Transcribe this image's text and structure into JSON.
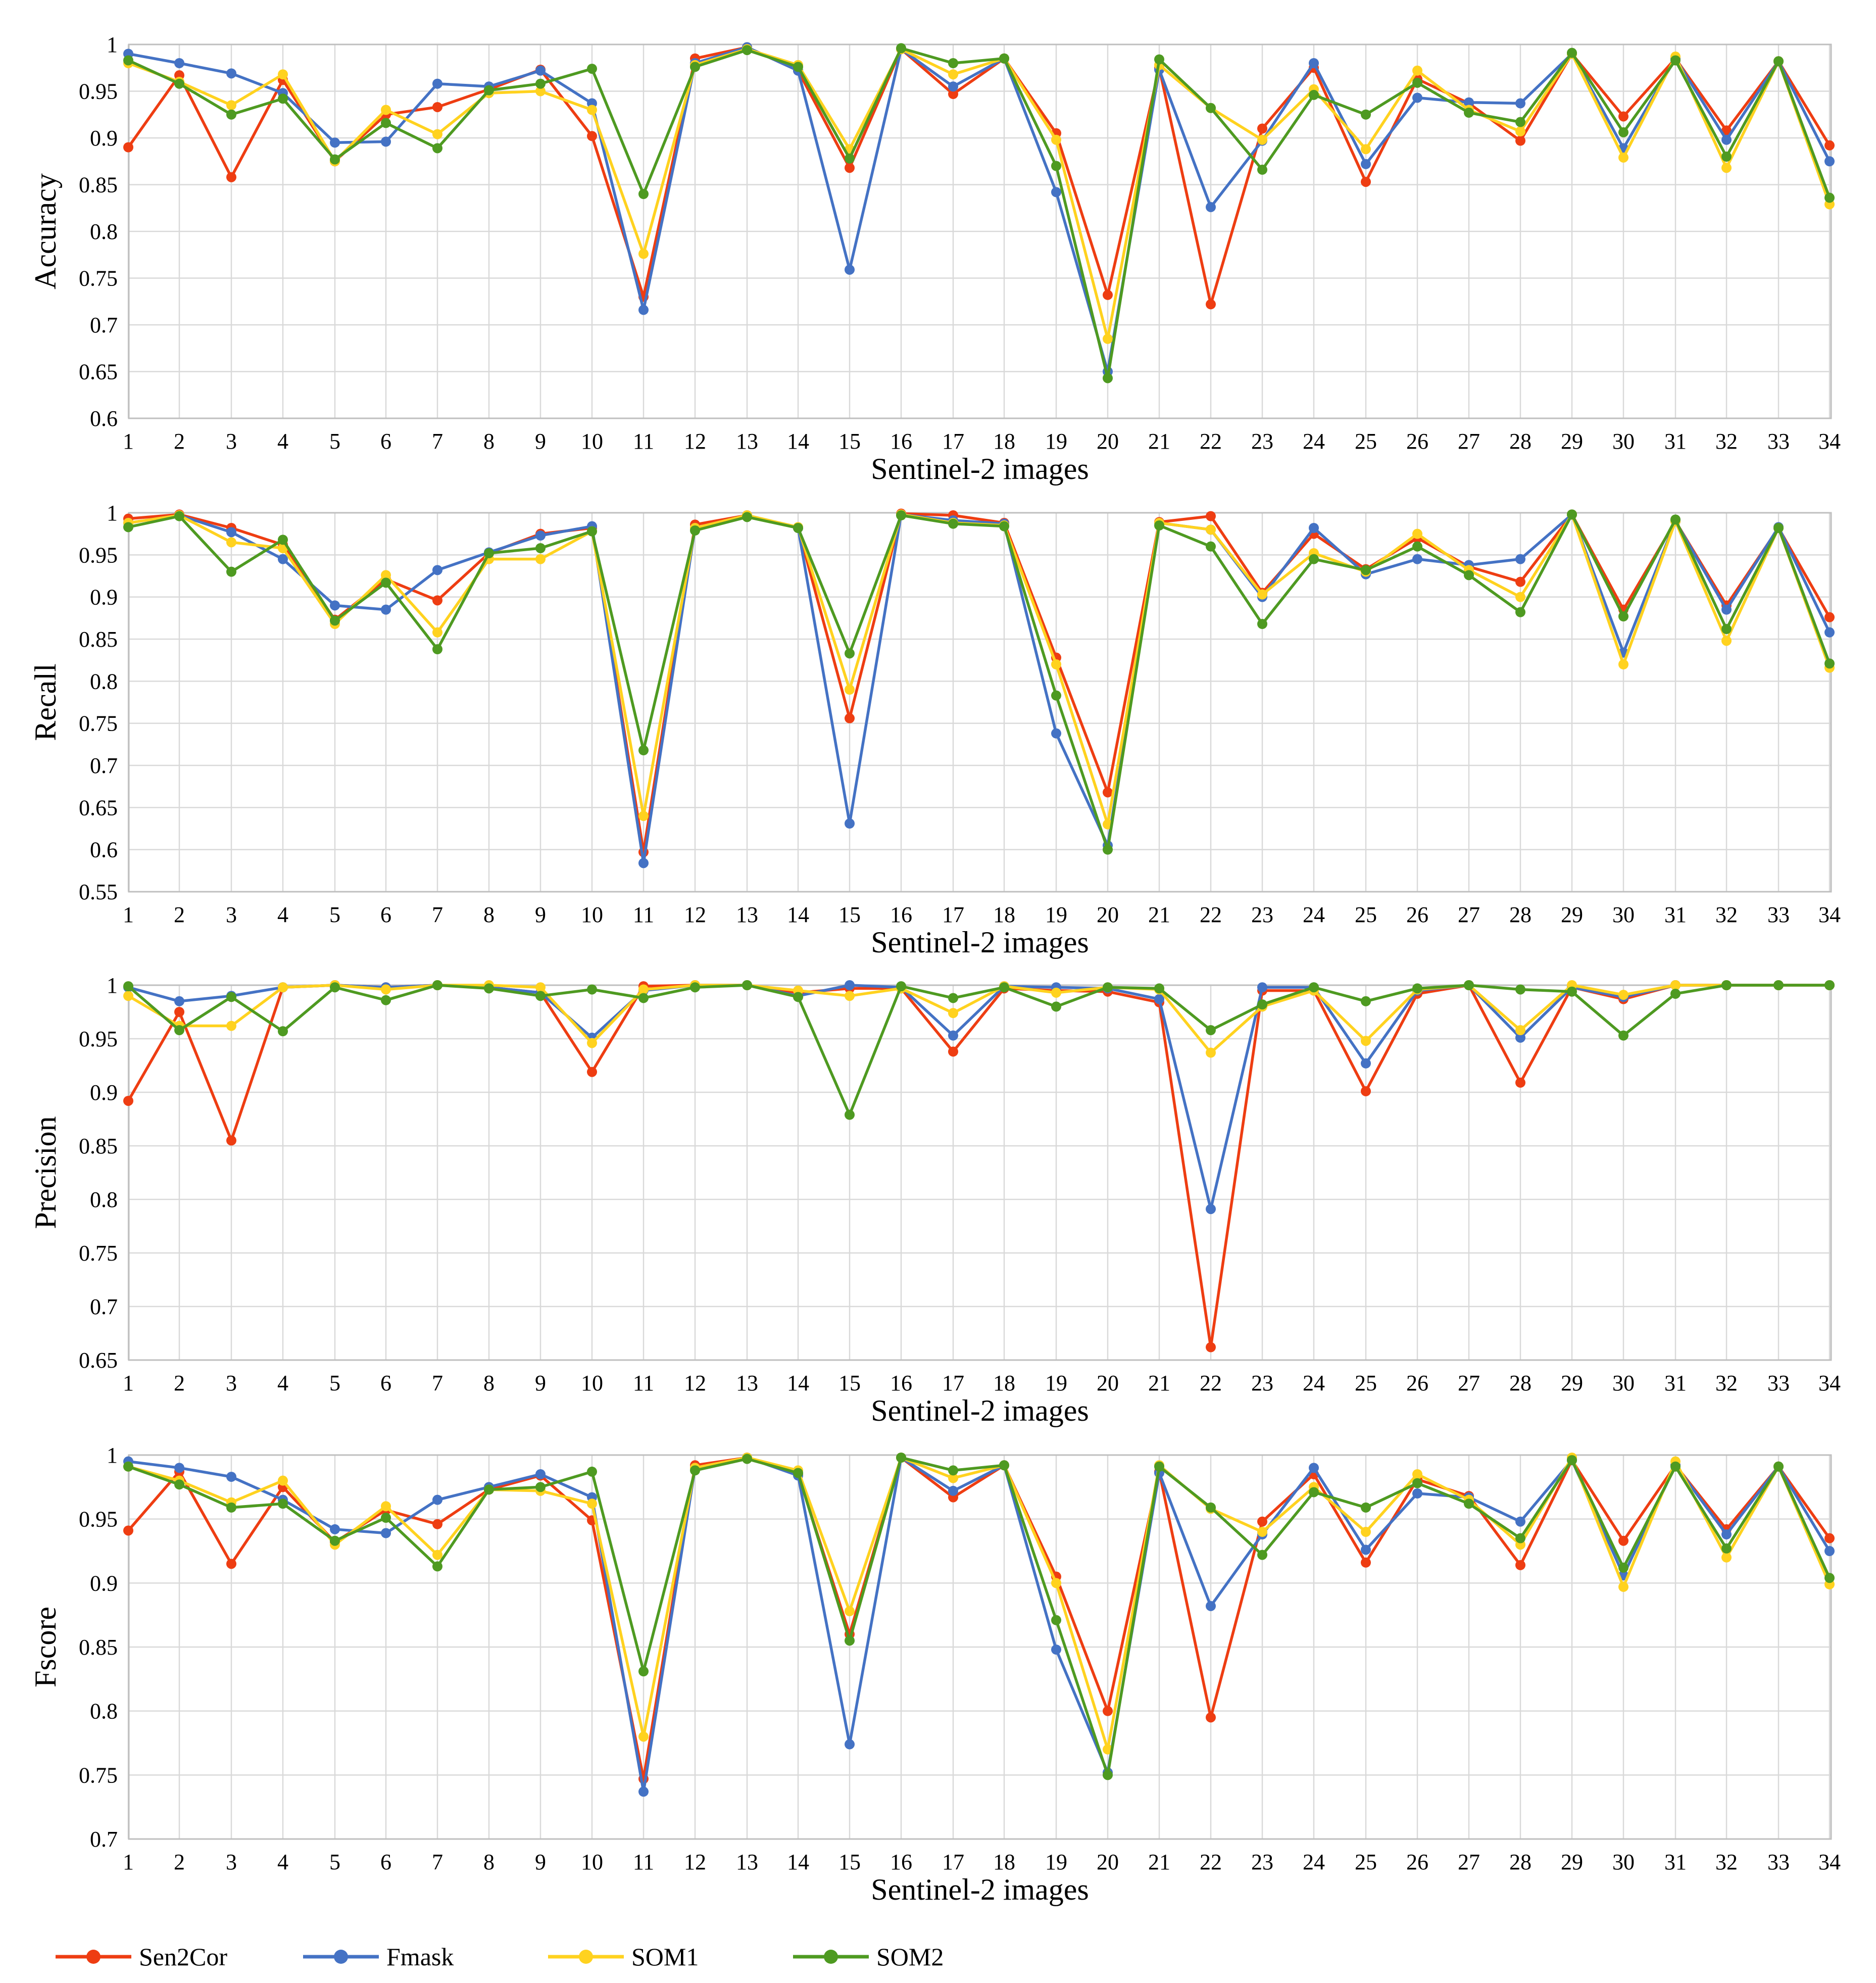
{
  "colors": {
    "Sen2Cor": "#ee3d12",
    "Fmask": "#4472c4",
    "SOM1": "#ffd21f",
    "SOM2": "#4e9a21"
  },
  "legend": [
    "Sen2Cor",
    "Fmask",
    "SOM1",
    "SOM2"
  ],
  "chart_data": [
    {
      "type": "line",
      "ylabel": "Accuracy",
      "xlabel": "Sentinel-2 images",
      "x": [
        1,
        2,
        3,
        4,
        5,
        6,
        7,
        8,
        9,
        10,
        11,
        12,
        13,
        14,
        15,
        16,
        17,
        18,
        19,
        20,
        21,
        22,
        23,
        24,
        25,
        26,
        27,
        28,
        29,
        30,
        31,
        32,
        33,
        34
      ],
      "ylim": [
        0.6,
        1.0
      ],
      "yticks": [
        0.6,
        0.65,
        0.7,
        0.75,
        0.8,
        0.85,
        0.9,
        0.95,
        1.0
      ],
      "ytick_labels": [
        "0.6",
        "0.65",
        "0.7",
        "0.75",
        "0.8",
        "0.85",
        "0.9",
        "0.95",
        "1"
      ],
      "grid": true,
      "series": [
        {
          "name": "Sen2Cor",
          "values": [
            0.89,
            0.967,
            0.858,
            0.962,
            0.875,
            0.925,
            0.933,
            0.952,
            0.973,
            0.902,
            0.73,
            0.985,
            0.997,
            0.972,
            0.868,
            0.995,
            0.947,
            0.985,
            0.905,
            0.732,
            0.975,
            0.722,
            0.91,
            0.975,
            0.853,
            0.963,
            0.937,
            0.897,
            0.99,
            0.923,
            0.985,
            0.908,
            0.982,
            0.892
          ]
        },
        {
          "name": "Fmask",
          "values": [
            0.99,
            0.98,
            0.969,
            0.948,
            0.895,
            0.896,
            0.958,
            0.955,
            0.972,
            0.937,
            0.716,
            0.98,
            0.997,
            0.972,
            0.759,
            0.995,
            0.955,
            0.985,
            0.842,
            0.65,
            0.973,
            0.826,
            0.897,
            0.98,
            0.872,
            0.943,
            0.938,
            0.937,
            0.99,
            0.889,
            0.985,
            0.898,
            0.982,
            0.875
          ]
        },
        {
          "name": "SOM1",
          "values": [
            0.98,
            0.96,
            0.935,
            0.968,
            0.875,
            0.93,
            0.904,
            0.948,
            0.95,
            0.93,
            0.776,
            0.978,
            0.995,
            0.978,
            0.888,
            0.995,
            0.968,
            0.985,
            0.898,
            0.685,
            0.978,
            0.932,
            0.898,
            0.952,
            0.888,
            0.972,
            0.93,
            0.907,
            0.99,
            0.879,
            0.987,
            0.868,
            0.982,
            0.829
          ]
        },
        {
          "name": "SOM2",
          "values": [
            0.983,
            0.958,
            0.925,
            0.942,
            0.877,
            0.916,
            0.889,
            0.951,
            0.958,
            0.974,
            0.84,
            0.976,
            0.994,
            0.976,
            0.878,
            0.996,
            0.98,
            0.985,
            0.87,
            0.643,
            0.984,
            0.932,
            0.866,
            0.946,
            0.925,
            0.959,
            0.927,
            0.917,
            0.991,
            0.906,
            0.983,
            0.88,
            0.982,
            0.836
          ]
        }
      ]
    },
    {
      "type": "line",
      "ylabel": "Recall",
      "xlabel": "Sentinel-2 images",
      "x": [
        1,
        2,
        3,
        4,
        5,
        6,
        7,
        8,
        9,
        10,
        11,
        12,
        13,
        14,
        15,
        16,
        17,
        18,
        19,
        20,
        21,
        22,
        23,
        24,
        25,
        26,
        27,
        28,
        29,
        30,
        31,
        32,
        33,
        34
      ],
      "ylim": [
        0.55,
        1.0
      ],
      "yticks": [
        0.55,
        0.6,
        0.65,
        0.7,
        0.75,
        0.8,
        0.85,
        0.9,
        0.95,
        1.0
      ],
      "ytick_labels": [
        "0.55",
        "0.6",
        "0.65",
        "0.7",
        "0.75",
        "0.8",
        "0.85",
        "0.9",
        "0.95",
        "1"
      ],
      "grid": true,
      "series": [
        {
          "name": "Sen2Cor",
          "values": [
            0.993,
            0.998,
            0.982,
            0.962,
            0.873,
            0.921,
            0.896,
            0.952,
            0.975,
            0.982,
            0.597,
            0.986,
            0.997,
            0.982,
            0.756,
            0.999,
            0.997,
            0.988,
            0.828,
            0.668,
            0.989,
            0.996,
            0.905,
            0.975,
            0.933,
            0.97,
            0.936,
            0.918,
            0.998,
            0.885,
            0.99,
            0.89,
            0.982,
            0.876
          ]
        },
        {
          "name": "Fmask",
          "values": [
            0.988,
            0.997,
            0.977,
            0.945,
            0.89,
            0.885,
            0.932,
            0.953,
            0.973,
            0.984,
            0.584,
            0.982,
            0.997,
            0.982,
            0.631,
            0.998,
            0.991,
            0.987,
            0.738,
            0.605,
            0.988,
            0.98,
            0.9,
            0.982,
            0.927,
            0.945,
            0.938,
            0.945,
            0.998,
            0.834,
            0.99,
            0.885,
            0.983,
            0.858
          ]
        },
        {
          "name": "SOM1",
          "values": [
            0.988,
            0.997,
            0.965,
            0.958,
            0.868,
            0.926,
            0.858,
            0.945,
            0.945,
            0.978,
            0.64,
            0.982,
            0.997,
            0.983,
            0.79,
            0.998,
            0.988,
            0.985,
            0.82,
            0.63,
            0.988,
            0.98,
            0.903,
            0.952,
            0.93,
            0.975,
            0.932,
            0.9,
            0.998,
            0.82,
            0.99,
            0.848,
            0.982,
            0.816
          ]
        },
        {
          "name": "SOM2",
          "values": [
            0.983,
            0.996,
            0.93,
            0.968,
            0.872,
            0.917,
            0.838,
            0.952,
            0.958,
            0.978,
            0.718,
            0.979,
            0.995,
            0.982,
            0.833,
            0.997,
            0.987,
            0.984,
            0.783,
            0.6,
            0.985,
            0.96,
            0.868,
            0.945,
            0.932,
            0.96,
            0.926,
            0.882,
            0.998,
            0.877,
            0.992,
            0.862,
            0.982,
            0.821
          ]
        }
      ]
    },
    {
      "type": "line",
      "ylabel": "Precision",
      "xlabel": "Sentinel-2 images",
      "x": [
        1,
        2,
        3,
        4,
        5,
        6,
        7,
        8,
        9,
        10,
        11,
        12,
        13,
        14,
        15,
        16,
        17,
        18,
        19,
        20,
        21,
        22,
        23,
        24,
        25,
        26,
        27,
        28,
        29,
        30,
        31,
        32,
        33,
        34
      ],
      "ylim": [
        0.65,
        1.0
      ],
      "yticks": [
        0.65,
        0.7,
        0.75,
        0.8,
        0.85,
        0.9,
        0.95,
        1.0
      ],
      "ytick_labels": [
        "0.65",
        "0.7",
        "0.75",
        "0.8",
        "0.85",
        "0.9",
        "0.95",
        "1"
      ],
      "grid": true,
      "series": [
        {
          "name": "Sen2Cor",
          "values": [
            0.892,
            0.975,
            0.855,
            0.998,
            1.0,
            0.998,
            1.0,
            0.998,
            0.993,
            0.919,
            0.999,
            1.0,
            1.0,
            0.993,
            0.997,
            0.997,
            0.938,
            0.997,
            0.995,
            0.994,
            0.984,
            0.662,
            0.995,
            0.995,
            0.901,
            0.992,
            1.0,
            0.909,
            0.998,
            0.987,
            1.0,
            1.0,
            1.0,
            1.0
          ]
        },
        {
          "name": "Fmask",
          "values": [
            0.998,
            0.985,
            0.99,
            0.998,
            1.0,
            0.998,
            1.0,
            0.998,
            0.993,
            0.951,
            0.995,
            1.0,
            1.0,
            0.99,
            1.0,
            0.998,
            0.953,
            0.999,
            0.998,
            0.997,
            0.987,
            0.791,
            0.998,
            0.998,
            0.927,
            0.995,
            1.0,
            0.951,
            0.998,
            0.989,
            1.0,
            1.0,
            1.0,
            1.0
          ]
        },
        {
          "name": "SOM1",
          "values": [
            0.99,
            0.962,
            0.962,
            0.998,
            1.0,
            0.996,
            1.0,
            1.0,
            0.998,
            0.946,
            0.996,
            1.0,
            1.0,
            0.995,
            0.99,
            0.997,
            0.974,
            0.999,
            0.993,
            0.998,
            0.996,
            0.937,
            0.98,
            0.995,
            0.948,
            0.996,
            1.0,
            0.958,
            1.0,
            0.991,
            1.0,
            1.0,
            1.0,
            1.0
          ]
        },
        {
          "name": "SOM2",
          "values": [
            0.999,
            0.958,
            0.989,
            0.957,
            0.998,
            0.986,
            1.0,
            0.997,
            0.99,
            0.996,
            0.988,
            0.998,
            1.0,
            0.989,
            0.879,
            0.999,
            0.988,
            0.998,
            0.98,
            0.998,
            0.997,
            0.958,
            0.982,
            0.998,
            0.985,
            0.997,
            1.0,
            0.996,
            0.994,
            0.953,
            0.992,
            1.0,
            1.0,
            1.0
          ]
        }
      ]
    },
    {
      "type": "line",
      "ylabel": "Fscore",
      "xlabel": "Sentinel-2 images",
      "x": [
        1,
        2,
        3,
        4,
        5,
        6,
        7,
        8,
        9,
        10,
        11,
        12,
        13,
        14,
        15,
        16,
        17,
        18,
        19,
        20,
        21,
        22,
        23,
        24,
        25,
        26,
        27,
        28,
        29,
        30,
        31,
        32,
        33,
        34
      ],
      "ylim": [
        0.7,
        1.0
      ],
      "yticks": [
        0.7,
        0.75,
        0.8,
        0.85,
        0.9,
        0.95,
        1.0
      ],
      "ytick_labels": [
        "0.7",
        "0.75",
        "0.8",
        "0.85",
        "0.9",
        "0.95",
        "1"
      ],
      "grid": true,
      "series": [
        {
          "name": "Sen2Cor",
          "values": [
            0.941,
            0.987,
            0.915,
            0.975,
            0.932,
            0.957,
            0.946,
            0.973,
            0.984,
            0.949,
            0.747,
            0.992,
            0.998,
            0.985,
            0.86,
            0.998,
            0.967,
            0.992,
            0.905,
            0.8,
            0.987,
            0.795,
            0.948,
            0.985,
            0.916,
            0.981,
            0.968,
            0.914,
            0.996,
            0.933,
            0.992,
            0.942,
            0.991,
            0.935
          ]
        },
        {
          "name": "Fmask",
          "values": [
            0.995,
            0.99,
            0.983,
            0.965,
            0.942,
            0.939,
            0.965,
            0.975,
            0.985,
            0.967,
            0.737,
            0.99,
            0.998,
            0.984,
            0.774,
            0.998,
            0.972,
            0.992,
            0.848,
            0.752,
            0.986,
            0.882,
            0.938,
            0.99,
            0.926,
            0.97,
            0.967,
            0.948,
            0.996,
            0.906,
            0.992,
            0.938,
            0.991,
            0.925
          ]
        },
        {
          "name": "SOM1",
          "values": [
            0.991,
            0.98,
            0.963,
            0.98,
            0.93,
            0.96,
            0.922,
            0.973,
            0.972,
            0.962,
            0.78,
            0.99,
            0.998,
            0.988,
            0.878,
            0.998,
            0.982,
            0.992,
            0.9,
            0.77,
            0.992,
            0.958,
            0.94,
            0.975,
            0.94,
            0.985,
            0.965,
            0.93,
            0.998,
            0.897,
            0.995,
            0.92,
            0.991,
            0.899
          ]
        },
        {
          "name": "SOM2",
          "values": [
            0.991,
            0.977,
            0.959,
            0.962,
            0.933,
            0.951,
            0.913,
            0.973,
            0.975,
            0.987,
            0.831,
            0.988,
            0.997,
            0.986,
            0.855,
            0.998,
            0.988,
            0.992,
            0.871,
            0.75,
            0.991,
            0.959,
            0.922,
            0.971,
            0.959,
            0.978,
            0.962,
            0.935,
            0.996,
            0.912,
            0.991,
            0.927,
            0.991,
            0.904
          ]
        }
      ]
    }
  ]
}
